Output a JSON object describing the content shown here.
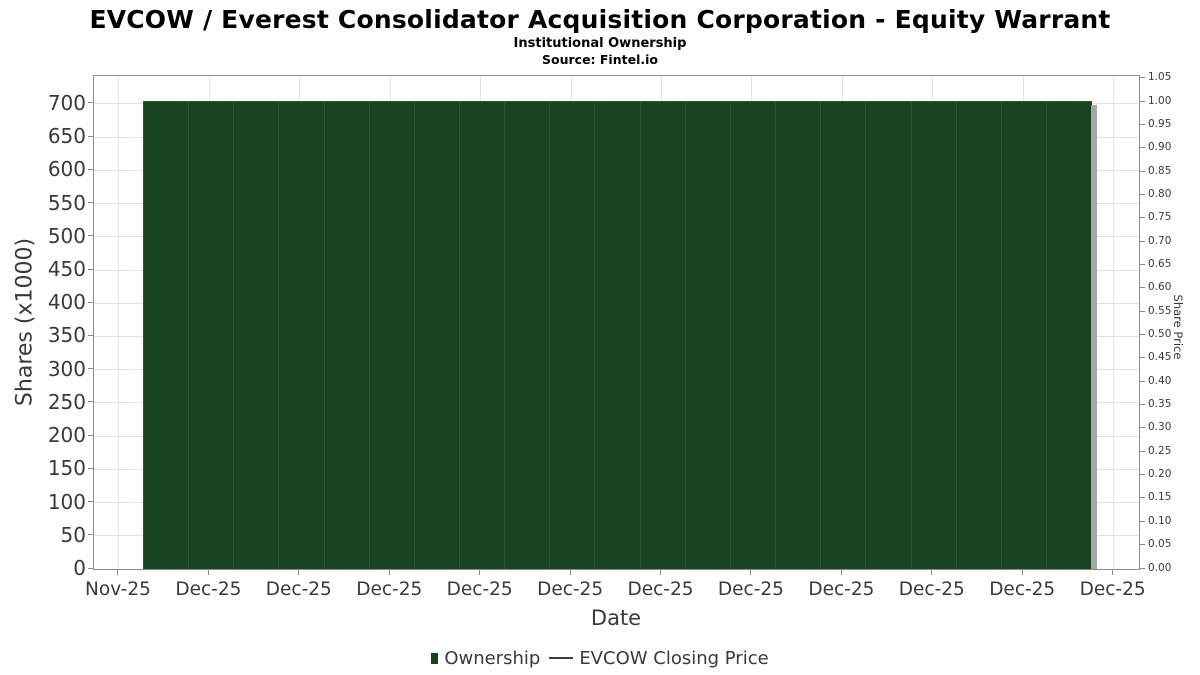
{
  "page": {
    "title": "EVCOW / Everest Consolidator Acquisition Corporation - Equity Warrant",
    "subtitle": "Institutional Ownership",
    "source": "Source: Fintel.io"
  },
  "colors": {
    "bar_fill": "#18431f",
    "bar_edge": "#2d5433",
    "bar_shadow": "#a8a8a8",
    "grid": "#e3e3e3",
    "axis": "#8c8c8c",
    "text": "#3a3a3a"
  },
  "chart_data": {
    "type": "bar",
    "title": "EVCOW / Everest Consolidator Acquisition Corporation - Equity Warrant",
    "subtitle": "Institutional Ownership",
    "source": "Source: Fintel.io",
    "xlabel": "Date",
    "ylabel_left": "Shares (x1000)",
    "ylabel_right": "Share Price",
    "x_tick_labels": [
      "Nov-25",
      "Dec-25",
      "Dec-25",
      "Dec-25",
      "Dec-25",
      "Dec-25",
      "Dec-25",
      "Dec-25",
      "Dec-25",
      "Dec-25",
      "Dec-25",
      "Dec-25"
    ],
    "y_left_ticks": [
      0,
      50,
      100,
      150,
      200,
      250,
      300,
      350,
      400,
      450,
      500,
      550,
      600,
      650,
      700
    ],
    "y_right_ticks": [
      "0.00",
      "0.05",
      "0.10",
      "0.15",
      "0.20",
      "0.25",
      "0.30",
      "0.35",
      "0.40",
      "0.45",
      "0.50",
      "0.55",
      "0.60",
      "0.65",
      "0.70",
      "0.75",
      "0.80",
      "0.85",
      "0.90",
      "0.95",
      "1.00",
      "1.05"
    ],
    "ylim_left": [
      0,
      742
    ],
    "ylim_right": [
      0,
      1.056
    ],
    "grid": true,
    "legend_position": "bottom",
    "series": [
      {
        "name": "Ownership",
        "type": "bar",
        "color": "#18431f",
        "values": [
          705,
          705,
          705,
          705,
          705,
          705,
          705,
          705,
          705,
          705,
          705,
          705,
          705,
          705,
          705,
          705,
          705,
          705,
          705,
          705,
          705
        ]
      },
      {
        "name": "EVCOW Closing Price",
        "type": "line",
        "color": "#3f3f3f",
        "values_visible": false
      }
    ],
    "layout_hints": {
      "x_first_tick_frac": 0.0239,
      "x_tick_step_frac": 0.08653,
      "bar_region_frac": [
        0.0468,
        0.9542
      ]
    }
  },
  "legend": {
    "items": [
      {
        "label": "Ownership",
        "marker": "square",
        "color": "#18431f"
      },
      {
        "label": "EVCOW Closing Price",
        "marker": "line",
        "color": "#3f3f3f"
      }
    ]
  }
}
